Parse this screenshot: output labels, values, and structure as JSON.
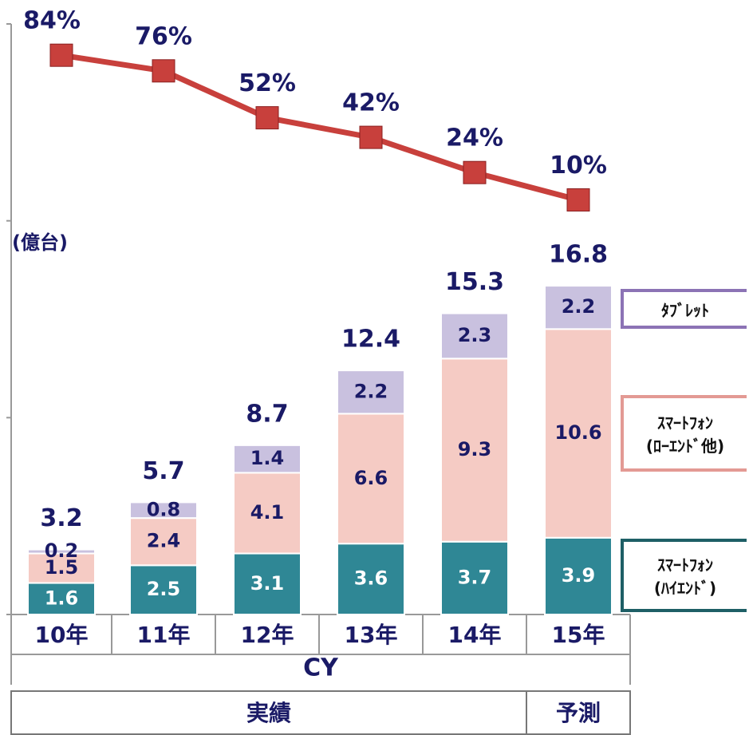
{
  "chart_data": {
    "type": "bar",
    "categories": [
      "10年",
      "11年",
      "12年",
      "13年",
      "14年",
      "15年"
    ],
    "series": [
      {
        "name": "ｽﾏｰﾄﾌｫﾝ\n(ﾊｲｴﾝﾄﾞ)",
        "color": "#2f8795",
        "values": [
          1.6,
          2.5,
          3.1,
          3.6,
          3.7,
          3.9
        ]
      },
      {
        "name": "ｽﾏｰﾄﾌｫﾝ\n(ﾛｰｴﾝﾄﾞ他)",
        "color": "#f5cbc4",
        "values": [
          1.5,
          2.4,
          4.1,
          6.6,
          9.3,
          10.6
        ]
      },
      {
        "name": "ﾀﾌﾞﾚｯﾄ",
        "color": "#c9c1df",
        "values": [
          0.2,
          0.8,
          1.4,
          2.2,
          2.3,
          2.2
        ]
      }
    ],
    "totals": [
      3.2,
      5.7,
      8.7,
      12.4,
      15.3,
      16.8
    ],
    "line": {
      "type": "line",
      "color": "#c8403c",
      "axis": "y2",
      "values": [
        84,
        76,
        52,
        42,
        24,
        10
      ],
      "value_labels": [
        "84%",
        "76%",
        "52%",
        "42%",
        "24%",
        "10%"
      ]
    },
    "y_label": "(億台)",
    "x_label": "CY",
    "periods": [
      "実績",
      "予測"
    ],
    "ylim": [
      0,
      30
    ],
    "yticks": [
      0,
      10,
      20,
      30
    ],
    "y2lim": [
      0,
      100
    ]
  }
}
